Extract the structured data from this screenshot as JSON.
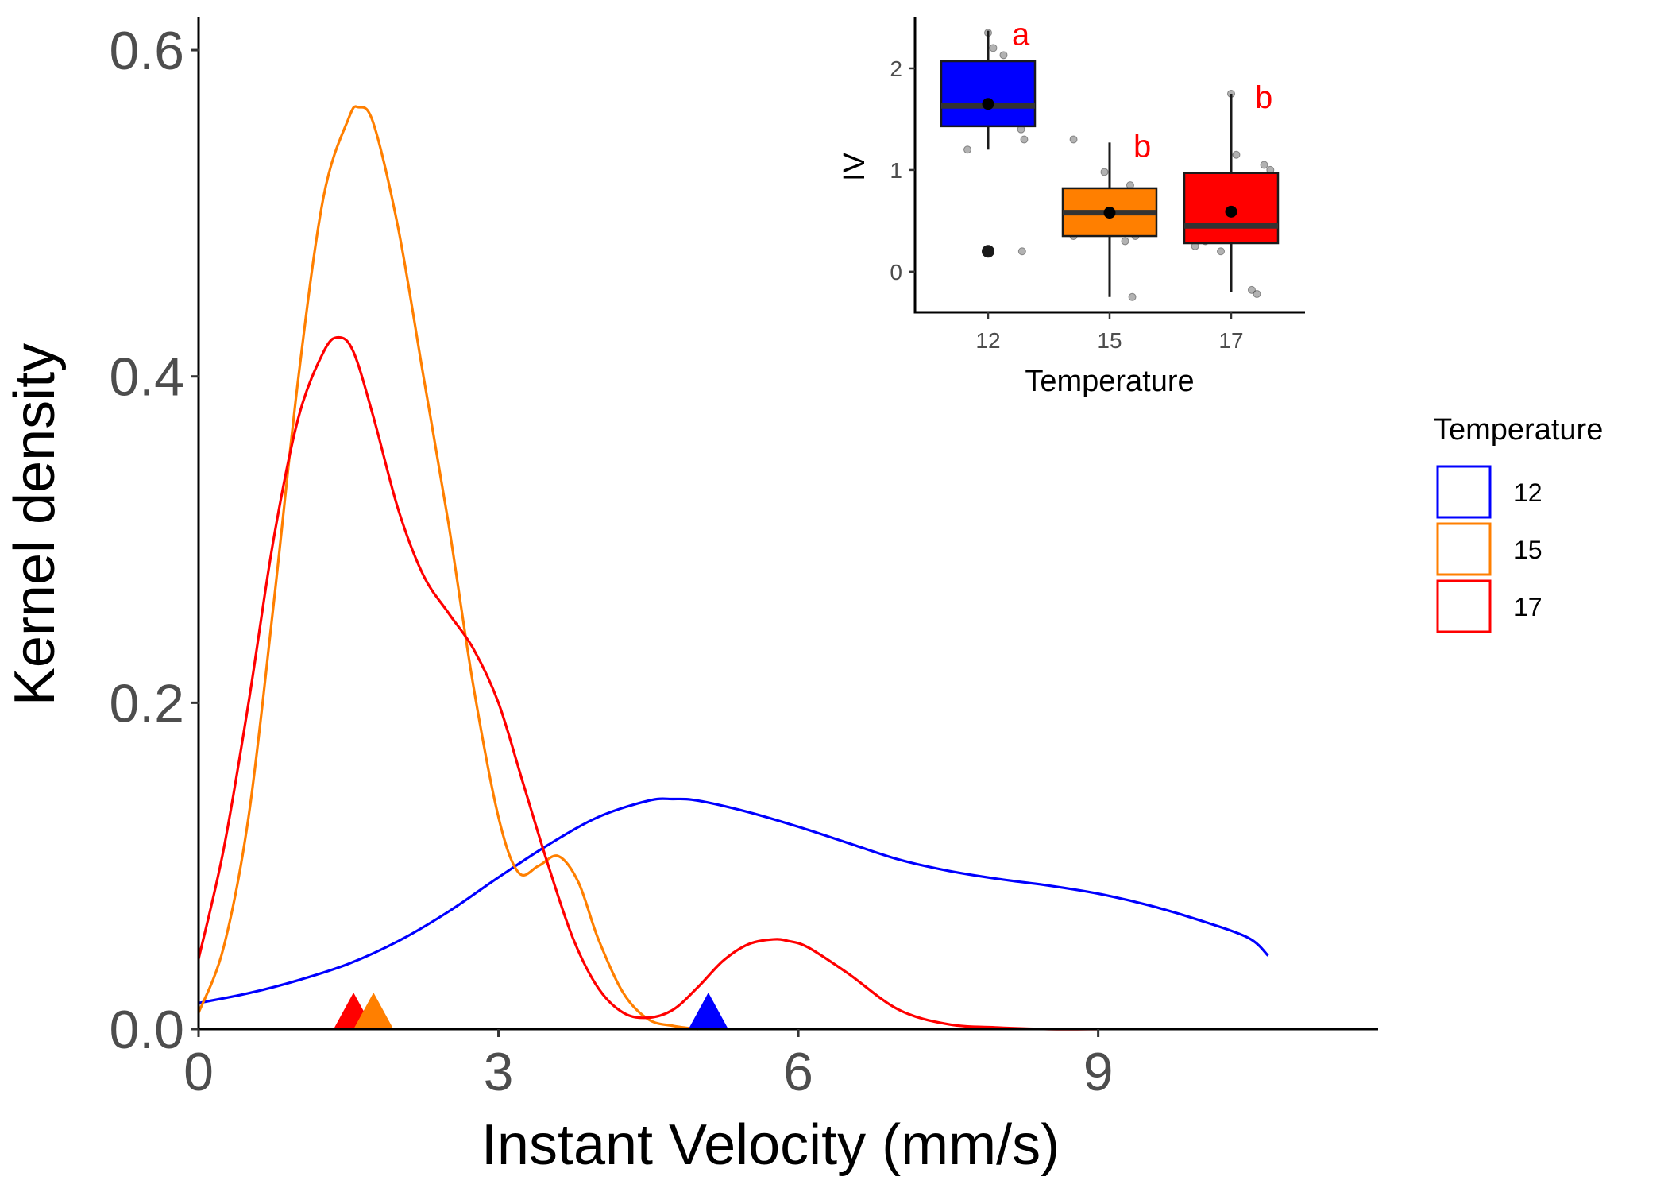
{
  "chart_data": [
    {
      "type": "line",
      "xlabel": "Instant Velocity (mm/s)",
      "ylabel": "Kernel density",
      "xlim": [
        0,
        11.8
      ],
      "ylim": [
        0,
        0.62
      ],
      "x_ticks": [
        0,
        3,
        6,
        9
      ],
      "x_tick_labels": [
        "0",
        "3",
        "6",
        "9"
      ],
      "y_ticks": [
        0.0,
        0.2,
        0.4,
        0.6
      ],
      "y_tick_labels": [
        "0.0",
        "0.2",
        "0.4",
        "0.6"
      ],
      "grid": false,
      "legend": {
        "title": "Temperature",
        "placement": "right",
        "entries": [
          "12",
          "15",
          "17"
        ]
      },
      "series": [
        {
          "name": "12",
          "color": "#0000ff",
          "x": [
            0,
            0.5,
            1,
            1.5,
            2,
            2.5,
            3,
            3.5,
            4,
            4.5,
            4.75,
            5,
            5.5,
            6,
            6.5,
            7,
            7.5,
            8,
            8.5,
            9,
            9.5,
            10,
            10.5,
            10.7
          ],
          "y": [
            0.016,
            0.022,
            0.03,
            0.04,
            0.054,
            0.072,
            0.093,
            0.113,
            0.13,
            0.14,
            0.141,
            0.14,
            0.133,
            0.124,
            0.114,
            0.104,
            0.097,
            0.092,
            0.088,
            0.083,
            0.076,
            0.067,
            0.056,
            0.045
          ]
        },
        {
          "name": "15",
          "color": "#ff7f00",
          "x": [
            0,
            0.25,
            0.5,
            0.75,
            1,
            1.25,
            1.5,
            1.6,
            1.75,
            2,
            2.25,
            2.5,
            2.75,
            3,
            3.2,
            3.4,
            3.6,
            3.8,
            4,
            4.25,
            4.5,
            4.75,
            5
          ],
          "y": [
            0.01,
            0.05,
            0.13,
            0.26,
            0.4,
            0.51,
            0.558,
            0.565,
            0.555,
            0.49,
            0.4,
            0.31,
            0.21,
            0.13,
            0.096,
            0.1,
            0.106,
            0.09,
            0.055,
            0.022,
            0.006,
            0.002,
            0.0
          ]
        },
        {
          "name": "17",
          "color": "#ff0000",
          "x": [
            0,
            0.25,
            0.5,
            0.75,
            1,
            1.25,
            1.4,
            1.55,
            1.75,
            2,
            2.25,
            2.5,
            2.75,
            3,
            3.25,
            3.5,
            3.75,
            4,
            4.25,
            4.5,
            4.75,
            5,
            5.25,
            5.5,
            5.75,
            5.9,
            6.1,
            6.5,
            7,
            7.5,
            8,
            8.5,
            9
          ],
          "y": [
            0.043,
            0.11,
            0.2,
            0.3,
            0.375,
            0.415,
            0.424,
            0.415,
            0.375,
            0.318,
            0.278,
            0.255,
            0.233,
            0.2,
            0.15,
            0.1,
            0.055,
            0.025,
            0.01,
            0.007,
            0.012,
            0.026,
            0.042,
            0.052,
            0.055,
            0.054,
            0.05,
            0.034,
            0.012,
            0.003,
            0.001,
            0.0,
            0.0
          ]
        }
      ],
      "markers": [
        {
          "series": "17",
          "x": 1.55,
          "y": 0.0,
          "color": "#ff0000"
        },
        {
          "series": "15",
          "x": 1.75,
          "y": 0.0,
          "color": "#ff7f00"
        },
        {
          "series": "12",
          "x": 5.1,
          "y": 0.0,
          "color": "#0000ff"
        }
      ]
    },
    {
      "type": "box",
      "xlabel": "Temperature",
      "ylabel": "IV",
      "categories": [
        "12",
        "15",
        "17"
      ],
      "ylim": [
        -0.4,
        2.5
      ],
      "y_ticks": [
        0,
        1,
        2
      ],
      "y_tick_labels": [
        "0",
        "1",
        "2"
      ],
      "boxes": [
        {
          "category": "12",
          "color": "#0000ff",
          "q1": 1.43,
          "median": 1.63,
          "q3": 2.07,
          "whisker_low": 1.2,
          "whisker_high": 2.37,
          "mean": 1.65,
          "outliers": [
            0.2
          ],
          "letter": "a",
          "points": [
            [
              -0.35,
              1.62
            ],
            [
              -0.25,
              1.9
            ],
            [
              -0.15,
              1.93
            ],
            [
              -0.05,
              1.62
            ],
            [
              0.05,
              2.2
            ],
            [
              0.15,
              2.13
            ],
            [
              0.25,
              1.75
            ],
            [
              0.32,
              1.4
            ],
            [
              0.35,
              1.3
            ],
            [
              -0.2,
              1.2
            ],
            [
              0.0,
              2.35
            ],
            [
              0.1,
              1.55
            ],
            [
              -0.3,
              1.85
            ],
            [
              0.33,
              0.2
            ]
          ]
        },
        {
          "category": "15",
          "color": "#ff7f00",
          "q1": 0.35,
          "median": 0.58,
          "q3": 0.82,
          "whisker_low": -0.25,
          "whisker_high": 1.27,
          "mean": 0.58,
          "outliers": [],
          "letter": "b",
          "points": [
            [
              -0.35,
              0.35
            ],
            [
              -0.35,
              1.3
            ],
            [
              -0.2,
              0.62
            ],
            [
              -0.05,
              0.98
            ],
            [
              0.05,
              0.75
            ],
            [
              0.1,
              0.45
            ],
            [
              0.15,
              0.3
            ],
            [
              0.2,
              0.85
            ],
            [
              0.25,
              0.35
            ],
            [
              0.28,
              0.58
            ],
            [
              0.22,
              -0.25
            ],
            [
              0.0,
              0.45
            ]
          ]
        },
        {
          "category": "17",
          "color": "#ff0000",
          "q1": 0.28,
          "median": 0.45,
          "q3": 0.97,
          "whisker_low": -0.2,
          "whisker_high": 1.75,
          "mean": 0.59,
          "outliers": [],
          "letter": "b",
          "points": [
            [
              -0.35,
              0.25
            ],
            [
              -0.3,
              0.6
            ],
            [
              -0.25,
              0.3
            ],
            [
              -0.2,
              0.45
            ],
            [
              -0.15,
              0.45
            ],
            [
              -0.1,
              0.2
            ],
            [
              -0.05,
              0.45
            ],
            [
              0.0,
              1.75
            ],
            [
              0.05,
              1.15
            ],
            [
              0.1,
              0.6
            ],
            [
              0.2,
              -0.18
            ],
            [
              0.25,
              -0.22
            ],
            [
              0.3,
              0.4
            ],
            [
              0.38,
              1.0
            ],
            [
              0.32,
              1.05
            ]
          ]
        }
      ]
    }
  ]
}
